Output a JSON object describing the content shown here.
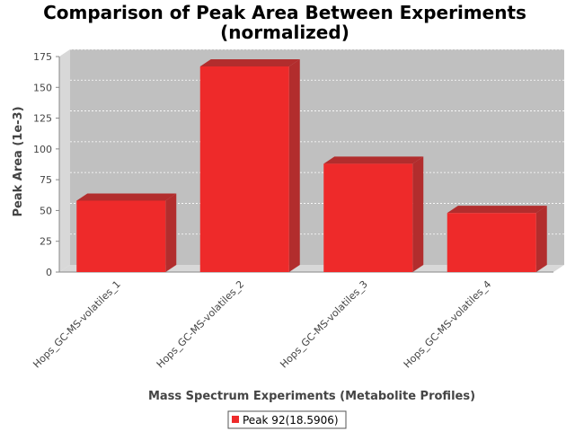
{
  "chart_data": {
    "type": "bar",
    "title": "Comparison of Peak Area Between Experiments",
    "subtitle": "(normalized)",
    "xlabel": "Mass Spectrum Experiments (Metabolite Profiles)",
    "ylabel": "Peak Area (1e-3)",
    "categories": [
      "Hops_GC-MS-volatiles_1",
      "Hops_GC-MS-volatiles_2",
      "Hops_GC-MS-volatiles_3",
      "Hops_GC-MS-volatiles_4"
    ],
    "series": [
      {
        "name": "Peak 92(18.5906)",
        "values": [
          58,
          167,
          88,
          48
        ],
        "color": "#ee2a2a"
      }
    ],
    "ylim": [
      0,
      175
    ],
    "yticks": [
      "0",
      "25",
      "50",
      "75",
      "100",
      "125",
      "150",
      "175"
    ],
    "grid": true,
    "legend_position": "bottom",
    "plot_background": "#c0c0c0"
  }
}
